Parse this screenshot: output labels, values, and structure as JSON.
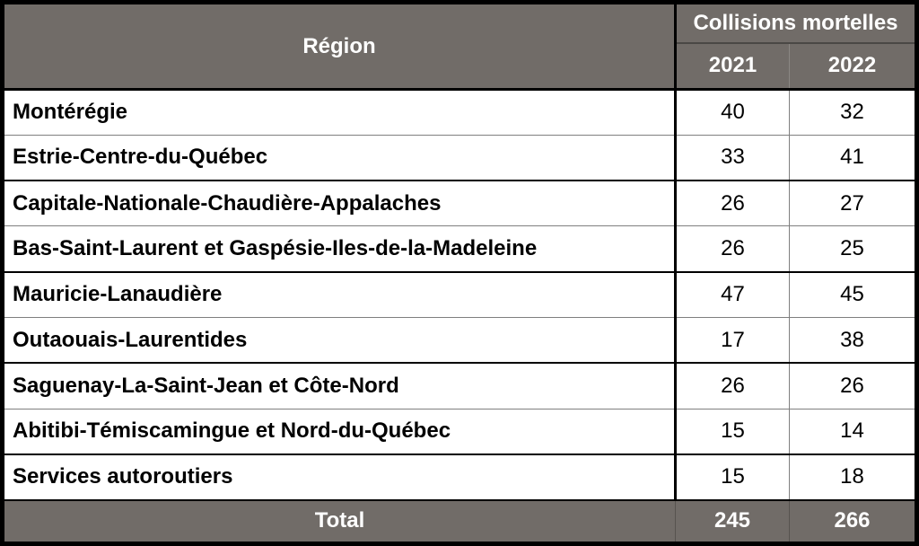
{
  "table": {
    "header": {
      "region_label": "Région",
      "group_label": "Collisions mortelles",
      "year_columns": [
        "2021",
        "2022"
      ]
    },
    "rows": [
      {
        "region": "Montérégie",
        "y2021": "40",
        "y2022": "32"
      },
      {
        "region": "Estrie-Centre-du-Québec",
        "y2021": "33",
        "y2022": "41"
      },
      {
        "region": "Capitale-Nationale-Chaudière-Appalaches",
        "y2021": "26",
        "y2022": "27"
      },
      {
        "region": "Bas-Saint-Laurent et Gaspésie-Iles-de-la-Madeleine",
        "y2021": "26",
        "y2022": "25"
      },
      {
        "region": "Mauricie-Lanaudière",
        "y2021": "47",
        "y2022": "45"
      },
      {
        "region": "Outaouais-Laurentides",
        "y2021": "17",
        "y2022": "38"
      },
      {
        "region": "Saguenay-La-Saint-Jean et Côte-Nord",
        "y2021": "26",
        "y2022": "26"
      },
      {
        "region": "Abitibi-Témiscamingue et Nord-du-Québec",
        "y2021": "15",
        "y2022": "14"
      },
      {
        "region": "Services autoroutiers",
        "y2021": "15",
        "y2022": "18"
      }
    ],
    "total": {
      "label": "Total",
      "y2021": "245",
      "y2022": "266"
    }
  },
  "colors": {
    "header_bg": "#716C68",
    "header_text": "#FFFFFF",
    "body_text": "#000000",
    "grid_thin": "#7F7F7F",
    "grid_thick": "#000000",
    "header_divider": "#4A4845",
    "header_year_divider": "#8A8783",
    "total_divider": "#57534F",
    "outer_border": "#000000",
    "row_bg": "#FFFFFF"
  }
}
